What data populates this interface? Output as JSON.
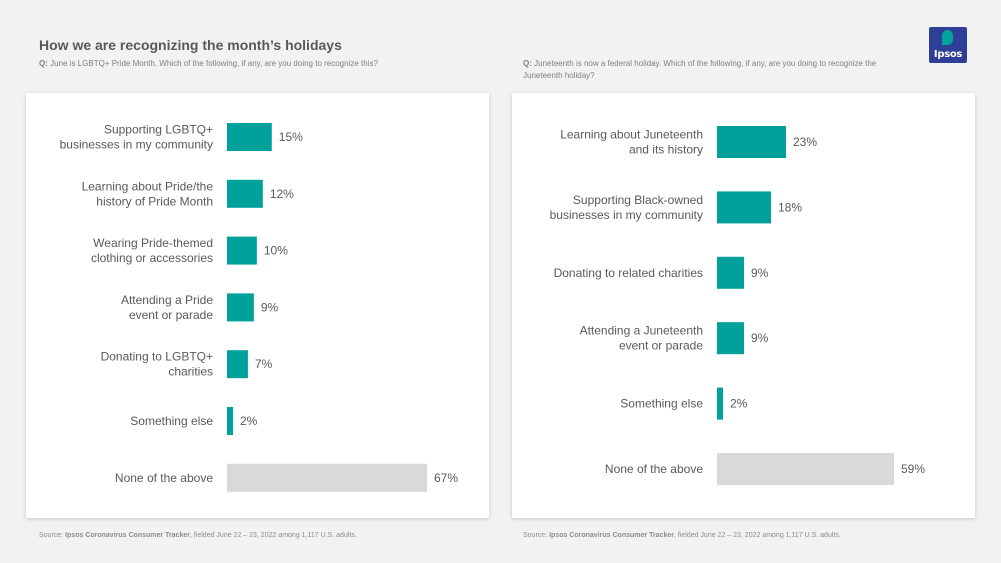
{
  "title": "How we are recognizing the month’s holidays",
  "left": {
    "question_prefix": "Q:",
    "question": "June is LGBTQ+ Pride Month. Which of the following, if any, are you doing to recognize this?"
  },
  "right": {
    "question_prefix": "Q:",
    "question": "Juneteenth is now a federal holiday. Which of the following, if any, are you doing to recognize the Juneteenth holiday?"
  },
  "source": {
    "prefix": "Source:",
    "name": "Ipsos Coronavirus Consumer Tracker",
    "rest": ", fielded June 22 – 23, 2022 among 1,117 U.S. adults."
  },
  "logo": {
    "text": "Ipsos",
    "brand_color": "#2f3f98",
    "accent_color": "#00a49a"
  },
  "colors": {
    "bar": "#00a19a",
    "none_bar": "#d9d9d9",
    "label": "#595959"
  },
  "chart_data": [
    {
      "type": "bar",
      "orientation": "horizontal",
      "categories": [
        [
          "Supporting LGBTQ+",
          "businesses in my community"
        ],
        [
          "Learning about Pride/the",
          "history of Pride Month"
        ],
        [
          "Wearing Pride-themed",
          "clothing or accessories"
        ],
        [
          "Attending a Pride",
          "event or parade"
        ],
        [
          "Donating to LGBTQ+",
          "charities"
        ],
        [
          "Something else"
        ],
        [
          "None of the above"
        ]
      ],
      "values": [
        15,
        12,
        10,
        9,
        7,
        2,
        67
      ],
      "value_labels": [
        "15%",
        "12%",
        "10%",
        "9%",
        "7%",
        "2%",
        "67%"
      ],
      "unit": "%",
      "xlim": [
        0,
        67
      ]
    },
    {
      "type": "bar",
      "orientation": "horizontal",
      "categories": [
        [
          "Learning about Juneteenth",
          "and its history"
        ],
        [
          "Supporting Black-owned",
          "businesses in my community"
        ],
        [
          "Donating to related charities"
        ],
        [
          "Attending a Juneteenth",
          "event or parade"
        ],
        [
          "Something else"
        ],
        [
          "None of the above"
        ]
      ],
      "values": [
        23,
        18,
        9,
        9,
        2,
        59
      ],
      "value_labels": [
        "23%",
        "18%",
        "9%",
        "9%",
        "2%",
        "59%"
      ],
      "unit": "%",
      "xlim": [
        0,
        59
      ]
    }
  ]
}
